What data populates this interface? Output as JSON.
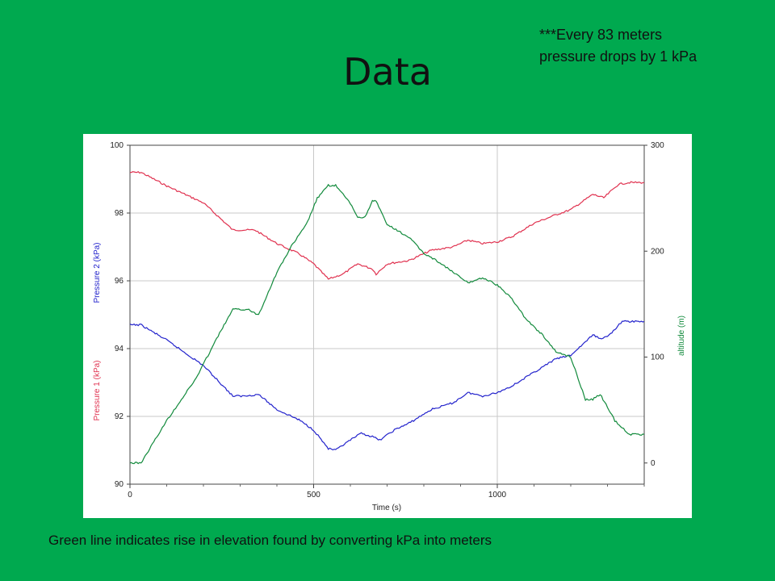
{
  "slide": {
    "title": "Data",
    "note_lines": [
      "***Every 83 meters",
      "pressure drops by 1 kPa"
    ],
    "caption": "Green line indicates rise in elevation found by converting kPa into meters"
  },
  "colors": {
    "background": "#00a94f",
    "pressure1": "#e0314f",
    "pressure2": "#2222cc",
    "altitude": "#128a3c",
    "grid": "#c8c8c8"
  },
  "chart_data": {
    "type": "line",
    "title": "",
    "xlabel": "Time (s)",
    "ylabel_left": [
      "Pressure 1 (kPa)",
      "Pressure 2 (kPa)"
    ],
    "ylabel_right": "altitude (m)",
    "xlim": [
      0,
      1400
    ],
    "ylim_left": [
      90,
      100
    ],
    "ylim_right": [
      -20,
      300
    ],
    "x_ticks_major": [
      0,
      500,
      1000
    ],
    "y_ticks_left": [
      90,
      92,
      94,
      96,
      98,
      100
    ],
    "y_ticks_right": [
      0,
      100,
      200,
      300
    ],
    "grid": true,
    "series": [
      {
        "name": "Pressure 1 (kPa)",
        "axis": "left",
        "color": "#e0314f",
        "points": [
          [
            0,
            99.2
          ],
          [
            30,
            99.2
          ],
          [
            100,
            98.8
          ],
          [
            200,
            98.3
          ],
          [
            280,
            97.5
          ],
          [
            340,
            97.5
          ],
          [
            400,
            97.1
          ],
          [
            460,
            96.8
          ],
          [
            500,
            96.5
          ],
          [
            540,
            96.05
          ],
          [
            580,
            96.2
          ],
          [
            620,
            96.5
          ],
          [
            660,
            96.35
          ],
          [
            670,
            96.2
          ],
          [
            700,
            96.5
          ],
          [
            760,
            96.6
          ],
          [
            820,
            96.9
          ],
          [
            880,
            97.0
          ],
          [
            920,
            97.2
          ],
          [
            960,
            97.1
          ],
          [
            1000,
            97.15
          ],
          [
            1040,
            97.3
          ],
          [
            1100,
            97.7
          ],
          [
            1160,
            97.95
          ],
          [
            1200,
            98.1
          ],
          [
            1260,
            98.55
          ],
          [
            1290,
            98.45
          ],
          [
            1330,
            98.85
          ],
          [
            1360,
            98.9
          ],
          [
            1400,
            98.9
          ]
        ]
      },
      {
        "name": "Pressure 2 (kPa)",
        "axis": "left",
        "color": "#2222cc",
        "points": [
          [
            0,
            94.7
          ],
          [
            30,
            94.7
          ],
          [
            100,
            94.25
          ],
          [
            200,
            93.5
          ],
          [
            280,
            92.6
          ],
          [
            310,
            92.6
          ],
          [
            350,
            92.65
          ],
          [
            400,
            92.2
          ],
          [
            460,
            91.9
          ],
          [
            500,
            91.6
          ],
          [
            540,
            91.05
          ],
          [
            560,
            91.0
          ],
          [
            600,
            91.3
          ],
          [
            630,
            91.5
          ],
          [
            660,
            91.4
          ],
          [
            680,
            91.3
          ],
          [
            720,
            91.6
          ],
          [
            760,
            91.8
          ],
          [
            820,
            92.2
          ],
          [
            880,
            92.4
          ],
          [
            920,
            92.7
          ],
          [
            960,
            92.6
          ],
          [
            1000,
            92.7
          ],
          [
            1040,
            92.9
          ],
          [
            1100,
            93.3
          ],
          [
            1160,
            93.7
          ],
          [
            1200,
            93.8
          ],
          [
            1260,
            94.4
          ],
          [
            1280,
            94.3
          ],
          [
            1300,
            94.35
          ],
          [
            1340,
            94.8
          ],
          [
            1400,
            94.8
          ]
        ]
      },
      {
        "name": "altitude (m)",
        "axis": "right",
        "color": "#128a3c",
        "points": [
          [
            0,
            0
          ],
          [
            30,
            0
          ],
          [
            100,
            40
          ],
          [
            180,
            80
          ],
          [
            240,
            120
          ],
          [
            280,
            145
          ],
          [
            320,
            145
          ],
          [
            350,
            140
          ],
          [
            400,
            180
          ],
          [
            440,
            205
          ],
          [
            480,
            225
          ],
          [
            510,
            250
          ],
          [
            540,
            262
          ],
          [
            560,
            262
          ],
          [
            600,
            245
          ],
          [
            620,
            232
          ],
          [
            640,
            232
          ],
          [
            660,
            248
          ],
          [
            670,
            247
          ],
          [
            700,
            225
          ],
          [
            760,
            213
          ],
          [
            800,
            198
          ],
          [
            840,
            190
          ],
          [
            880,
            180
          ],
          [
            920,
            170
          ],
          [
            960,
            175
          ],
          [
            1000,
            168
          ],
          [
            1040,
            155
          ],
          [
            1080,
            135
          ],
          [
            1120,
            122
          ],
          [
            1160,
            105
          ],
          [
            1200,
            100
          ],
          [
            1240,
            60
          ],
          [
            1260,
            60
          ],
          [
            1280,
            65
          ],
          [
            1320,
            40
          ],
          [
            1360,
            27
          ],
          [
            1400,
            27
          ]
        ]
      }
    ]
  }
}
